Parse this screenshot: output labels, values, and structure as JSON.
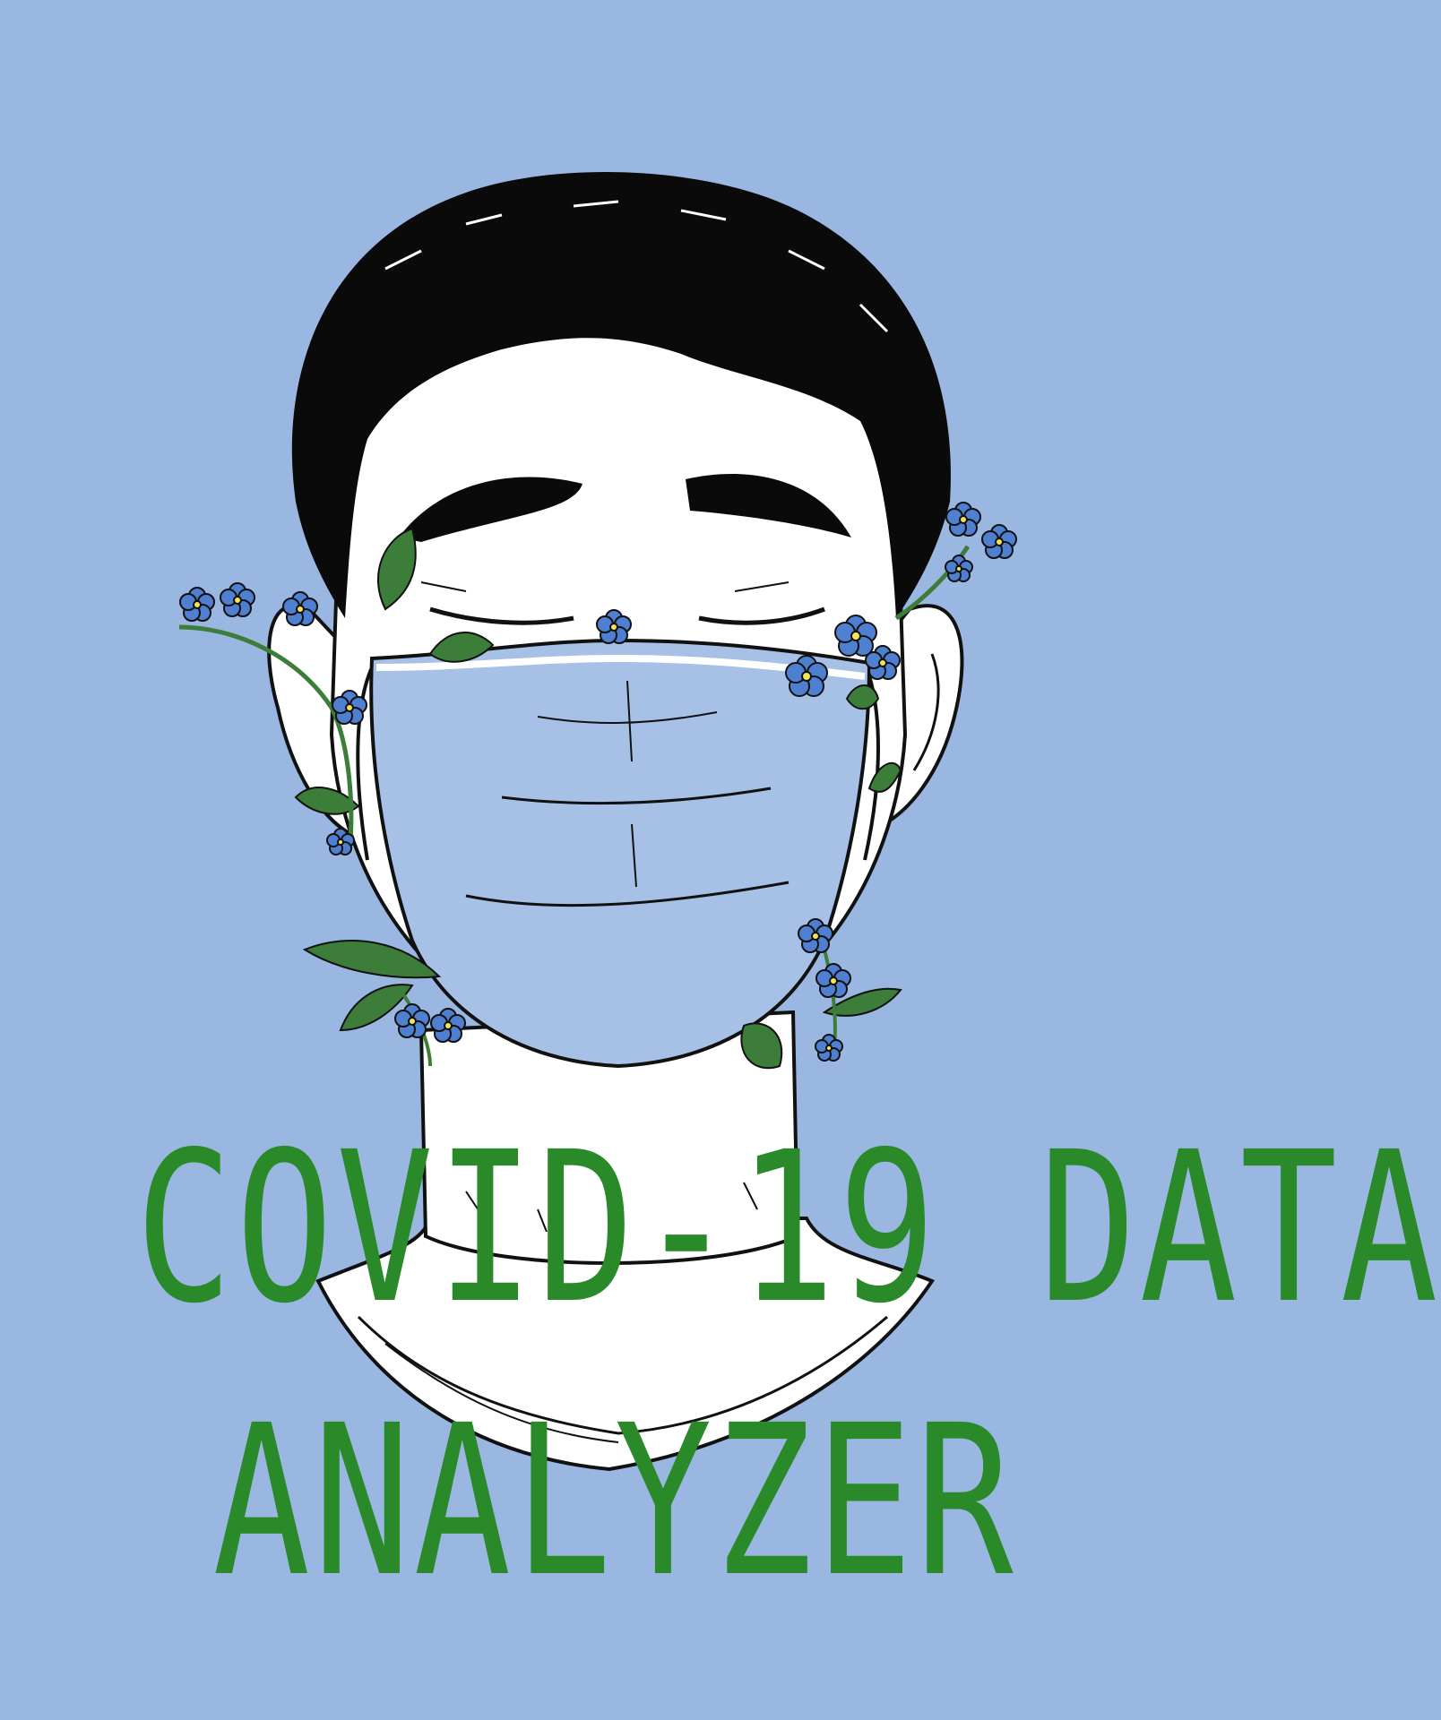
{
  "poster": {
    "background_color": "#9ab7e1",
    "title_color": "#2a8a2a",
    "title_lines": [
      "COVID-19 DATA",
      "ANALYZER"
    ]
  },
  "illustration": {
    "subject": "masked-face-with-flowers",
    "mask_color": "#a7c1e6",
    "flower_color": "#4f7fd1",
    "leaf_color": "#3d7d3a",
    "hair_color": "#0a0a0a"
  }
}
